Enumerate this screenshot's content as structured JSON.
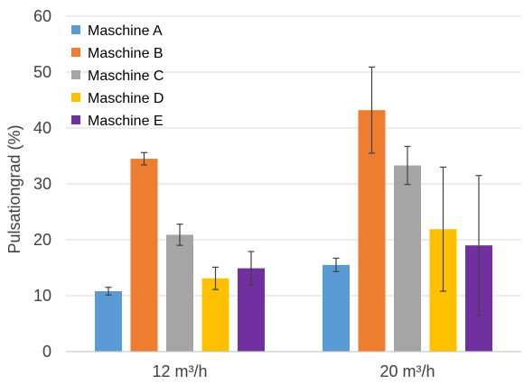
{
  "chart_data": {
    "type": "bar",
    "title": "",
    "xlabel": "",
    "ylabel": "Pulsationgrad (%)",
    "ylim": [
      0,
      60
    ],
    "yticks": [
      "0",
      "10",
      "20",
      "30",
      "40",
      "50",
      "60"
    ],
    "grid": true,
    "legend_position": "top-left",
    "categories": [
      "12 m³/h",
      "20 m³/h"
    ],
    "series": [
      {
        "name": "Maschine A",
        "color": "#5b9bd5",
        "values": [
          10.8,
          15.5
        ],
        "errors": [
          0.7,
          1.2
        ]
      },
      {
        "name": "Maschine B",
        "color": "#ed7d31",
        "values": [
          34.5,
          43.2
        ],
        "errors": [
          1.1,
          7.7
        ]
      },
      {
        "name": "Maschine C",
        "color": "#a5a5a5",
        "values": [
          20.9,
          33.3
        ],
        "errors": [
          1.9,
          3.4
        ]
      },
      {
        "name": "Maschine D",
        "color": "#ffc000",
        "values": [
          13.1,
          21.9
        ],
        "errors": [
          2.0,
          11.1
        ]
      },
      {
        "name": "Maschine E",
        "color": "#7030a0",
        "values": [
          14.9,
          19.0
        ],
        "errors": [
          3.0,
          12.5
        ]
      }
    ]
  }
}
